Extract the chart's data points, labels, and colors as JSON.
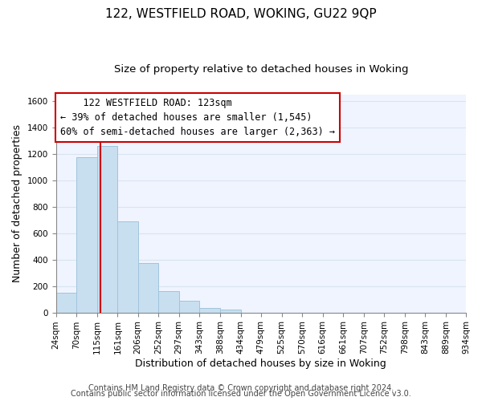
{
  "title": "122, WESTFIELD ROAD, WOKING, GU22 9QP",
  "subtitle": "Size of property relative to detached houses in Woking",
  "xlabel": "Distribution of detached houses by size in Woking",
  "ylabel": "Number of detached properties",
  "bar_edges": [
    24,
    70,
    115,
    161,
    206,
    252,
    297,
    343,
    388,
    434,
    479,
    525,
    570,
    616,
    661,
    707,
    752,
    798,
    843,
    889,
    934
  ],
  "bar_heights": [
    150,
    1175,
    1260,
    690,
    375,
    160,
    90,
    35,
    20,
    0,
    0,
    0,
    0,
    0,
    0,
    0,
    0,
    0,
    0,
    0
  ],
  "bar_color": "#c8dff0",
  "bar_edge_color": "#a0c4dc",
  "property_line_x": 123,
  "property_line_color": "#cc0000",
  "annotation_line1": "    122 WESTFIELD ROAD: 123sqm",
  "annotation_line2": "← 39% of detached houses are smaller (1,545)",
  "annotation_line3": "60% of semi-detached houses are larger (2,363) →",
  "ylim": [
    0,
    1650
  ],
  "yticks": [
    0,
    200,
    400,
    600,
    800,
    1000,
    1200,
    1400,
    1600
  ],
  "xtick_labels": [
    "24sqm",
    "70sqm",
    "115sqm",
    "161sqm",
    "206sqm",
    "252sqm",
    "297sqm",
    "343sqm",
    "388sqm",
    "434sqm",
    "479sqm",
    "525sqm",
    "570sqm",
    "616sqm",
    "661sqm",
    "707sqm",
    "752sqm",
    "798sqm",
    "843sqm",
    "889sqm",
    "934sqm"
  ],
  "footer_line1": "Contains HM Land Registry data © Crown copyright and database right 2024.",
  "footer_line2": "Contains public sector information licensed under the Open Government Licence v3.0.",
  "bg_color": "#ffffff",
  "plot_bg_color": "#f0f4ff",
  "grid_color": "#d8e4f0",
  "title_fontsize": 11,
  "subtitle_fontsize": 9.5,
  "axis_label_fontsize": 9,
  "tick_fontsize": 7.5,
  "footer_fontsize": 7,
  "annotation_fontsize": 8.5
}
